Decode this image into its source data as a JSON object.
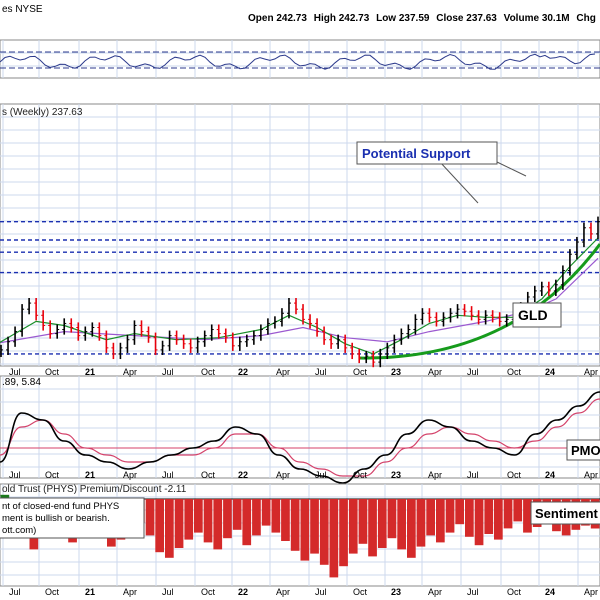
{
  "header": {
    "symbol_suffix": "es NYSE",
    "open_label": "Open",
    "open": "242.73",
    "high_label": "High",
    "high": "242.73",
    "low_label": "Low",
    "low": "237.59",
    "close_label": "Close",
    "close": "237.63",
    "volume_label": "Volume",
    "volume": "30.1M",
    "chg_label": "Chg"
  },
  "main_panel": {
    "title": "s (Weekly) 237.63",
    "callout_support": "Potential Support",
    "label_gld": "GLD"
  },
  "pmo_panel": {
    "values_text": ".89, 5.84",
    "label": "PMO"
  },
  "sentiment_panel": {
    "title": "old Trust (PHYS) Premium/Discount -2.11",
    "note_lines": [
      "nt of closed-end fund PHYS",
      "ment is bullish or bearish.",
      "ott.com)"
    ],
    "label": "Sentiment"
  },
  "x_axis": {
    "ticks": [
      "Jul",
      "Oct",
      "21",
      "Apr",
      "Jul",
      "Oct",
      "22",
      "Apr",
      "Jul",
      "Oct",
      "23",
      "Apr",
      "Jul",
      "Oct",
      "24",
      "Apr"
    ],
    "bold_ticks": [
      "21",
      "22",
      "23",
      "24"
    ]
  },
  "colors": {
    "price_up": "#000000",
    "price_down": "#e8000b",
    "ema_fast": "#1a8f2a",
    "ema_slow": "#9b59d0",
    "support": "#1a2fb0",
    "green_curve": "#169b1c",
    "pmo": "#000000",
    "pmo_signal": "#d4426a",
    "sentiment_bar": "#d42a2a",
    "grid": "#cdd9ee",
    "panel_border": "#8a8a8a",
    "rsi_line": "#2c3a8c"
  },
  "chart_data": {
    "type": "line",
    "price_axis_range": [
      148,
      262
    ],
    "price": [
      [
        0,
        150
      ],
      [
        1,
        151
      ],
      [
        2,
        155
      ],
      [
        3,
        160
      ],
      [
        4,
        171
      ],
      [
        5,
        174
      ],
      [
        6,
        168
      ],
      [
        7,
        163
      ],
      [
        8,
        159
      ],
      [
        9,
        161
      ],
      [
        10,
        164
      ],
      [
        11,
        162
      ],
      [
        12,
        158
      ],
      [
        13,
        160
      ],
      [
        14,
        162
      ],
      [
        15,
        158
      ],
      [
        16,
        152
      ],
      [
        17,
        149
      ],
      [
        18,
        152
      ],
      [
        19,
        156
      ],
      [
        20,
        163
      ],
      [
        21,
        160
      ],
      [
        22,
        157
      ],
      [
        23,
        151
      ],
      [
        24,
        153
      ],
      [
        25,
        158
      ],
      [
        26,
        156
      ],
      [
        27,
        154
      ],
      [
        28,
        152
      ],
      [
        29,
        155
      ],
      [
        30,
        158
      ],
      [
        31,
        161
      ],
      [
        32,
        159
      ],
      [
        33,
        157
      ],
      [
        34,
        153
      ],
      [
        35,
        155
      ],
      [
        36,
        156
      ],
      [
        37,
        158
      ],
      [
        38,
        161
      ],
      [
        39,
        164
      ],
      [
        40,
        165
      ],
      [
        41,
        169
      ],
      [
        42,
        174
      ],
      [
        43,
        171
      ],
      [
        44,
        166
      ],
      [
        45,
        164
      ],
      [
        46,
        160
      ],
      [
        47,
        156
      ],
      [
        48,
        154
      ],
      [
        49,
        156
      ],
      [
        50,
        152
      ],
      [
        51,
        149
      ],
      [
        52,
        147
      ],
      [
        53,
        148
      ],
      [
        54,
        145
      ],
      [
        55,
        149
      ],
      [
        56,
        152
      ],
      [
        57,
        156
      ],
      [
        58,
        159
      ],
      [
        59,
        161
      ],
      [
        60,
        166
      ],
      [
        61,
        169
      ],
      [
        62,
        167
      ],
      [
        63,
        165
      ],
      [
        64,
        167
      ],
      [
        65,
        169
      ],
      [
        66,
        171
      ],
      [
        67,
        170
      ],
      [
        68,
        168
      ],
      [
        69,
        166
      ],
      [
        70,
        168
      ],
      [
        71,
        167
      ],
      [
        72,
        165
      ],
      [
        73,
        166
      ],
      [
        74,
        167
      ],
      [
        75,
        172
      ],
      [
        76,
        177
      ],
      [
        77,
        180
      ],
      [
        78,
        182
      ],
      [
        79,
        180
      ],
      [
        80,
        183
      ],
      [
        81,
        190
      ],
      [
        82,
        198
      ],
      [
        83,
        204
      ],
      [
        84,
        211
      ],
      [
        85,
        208
      ],
      [
        86,
        214
      ]
    ],
    "ema_fast": [
      [
        0,
        153
      ],
      [
        6,
        165
      ],
      [
        10,
        163
      ],
      [
        16,
        156
      ],
      [
        20,
        159
      ],
      [
        26,
        156
      ],
      [
        32,
        157
      ],
      [
        38,
        161
      ],
      [
        42,
        168
      ],
      [
        46,
        162
      ],
      [
        50,
        154
      ],
      [
        54,
        149
      ],
      [
        58,
        156
      ],
      [
        62,
        164
      ],
      [
        66,
        168
      ],
      [
        70,
        167
      ],
      [
        74,
        167
      ],
      [
        78,
        176
      ],
      [
        82,
        192
      ],
      [
        86,
        206
      ]
    ],
    "ema_slow": [
      [
        0,
        154
      ],
      [
        10,
        160
      ],
      [
        20,
        158
      ],
      [
        30,
        156
      ],
      [
        38,
        158
      ],
      [
        44,
        162
      ],
      [
        50,
        157
      ],
      [
        56,
        155
      ],
      [
        62,
        160
      ],
      [
        70,
        165
      ],
      [
        76,
        170
      ],
      [
        80,
        176
      ],
      [
        86,
        196
      ]
    ],
    "support_levels": [
      214,
      205,
      199,
      189,
      149
    ],
    "pmo": [
      -2,
      5,
      4,
      1,
      -1,
      -2,
      -3,
      -2,
      -1,
      0,
      1,
      3,
      2,
      -1,
      -3,
      -4,
      -5,
      -3,
      -1,
      2,
      4,
      3,
      1,
      0,
      -1,
      2,
      4,
      6,
      8
    ],
    "pmo_signal": [
      -1,
      3,
      4,
      2,
      0,
      -1,
      -2,
      -2,
      -1,
      -1,
      0,
      2,
      2,
      0,
      -2,
      -3,
      -4,
      -4,
      -2,
      0,
      2,
      3,
      2,
      1,
      0,
      1,
      3,
      5,
      7
    ],
    "premium_discount": [
      0.3,
      -1.2,
      -2.8,
      -3.6,
      -2.4,
      -1.6,
      -2.2,
      -3.1,
      -2.7,
      -1.9,
      -2.5,
      -3.4,
      -2.9,
      -2.2,
      -1.7,
      -2.6,
      -3.8,
      -4.2,
      -3.5,
      -2.9,
      -2.4,
      -3.1,
      -3.6,
      -2.8,
      -2.2,
      -3.3,
      -2.6,
      -1.9,
      -2.4,
      -3.0,
      -3.7,
      -4.4,
      -3.9,
      -4.7,
      -5.6,
      -4.8,
      -3.9,
      -3.2,
      -4.1,
      -3.5,
      -2.8,
      -3.6,
      -4.2,
      -3.4,
      -2.6,
      -3.1,
      -2.4,
      -1.8,
      -2.7,
      -3.3,
      -2.5,
      -2.9,
      -2.1,
      -1.6,
      -2.4,
      -2.0,
      -1.7,
      -2.3,
      -2.6,
      -2.2,
      -1.9,
      -2.11
    ]
  }
}
